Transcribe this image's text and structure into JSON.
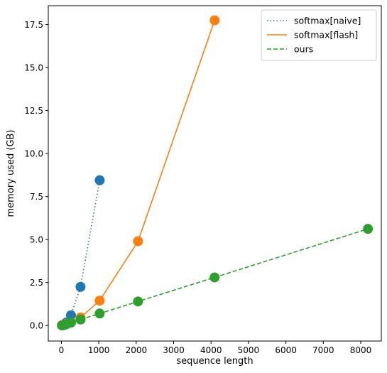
{
  "chart_data": {
    "type": "line",
    "title": "",
    "xlabel": "sequence length",
    "ylabel": "memory used (GB)",
    "xlim": [
      -350,
      8550
    ],
    "ylim": [
      -0.9,
      18.6
    ],
    "x_ticks": [
      0,
      1000,
      2000,
      3000,
      4000,
      5000,
      6000,
      7000,
      8000
    ],
    "y_ticks": [
      0.0,
      2.5,
      5.0,
      7.5,
      10.0,
      12.5,
      15.0,
      17.5
    ],
    "x_tick_labels": [
      "0",
      "1000",
      "2000",
      "3000",
      "4000",
      "5000",
      "6000",
      "7000",
      "8000"
    ],
    "y_tick_labels": [
      "0.0",
      "2.5",
      "5.0",
      "7.5",
      "10.0",
      "12.5",
      "15.0",
      "17.5"
    ],
    "grid": false,
    "legend_position": "top-right",
    "series": [
      {
        "name": "softmax[naive]",
        "color": "#1f77b4",
        "line_style": "dotted",
        "x": [
          16,
          32,
          64,
          128,
          256,
          512,
          1024
        ],
        "y": [
          0.01,
          0.02,
          0.05,
          0.17,
          0.6,
          2.25,
          8.45
        ]
      },
      {
        "name": "softmax[flash]",
        "color": "#ff7f0e",
        "line_style": "solid",
        "x": [
          16,
          32,
          64,
          128,
          256,
          512,
          1024,
          2048,
          4096
        ],
        "y": [
          0.01,
          0.02,
          0.04,
          0.09,
          0.18,
          0.47,
          1.45,
          4.9,
          17.75
        ]
      },
      {
        "name": "ours",
        "color": "#2ca02c",
        "line_style": "dashed",
        "x": [
          16,
          32,
          64,
          128,
          256,
          512,
          1024,
          2048,
          4096,
          8192
        ],
        "y": [
          0.01,
          0.02,
          0.03,
          0.07,
          0.17,
          0.35,
          0.7,
          1.4,
          2.8,
          5.62
        ]
      }
    ]
  }
}
